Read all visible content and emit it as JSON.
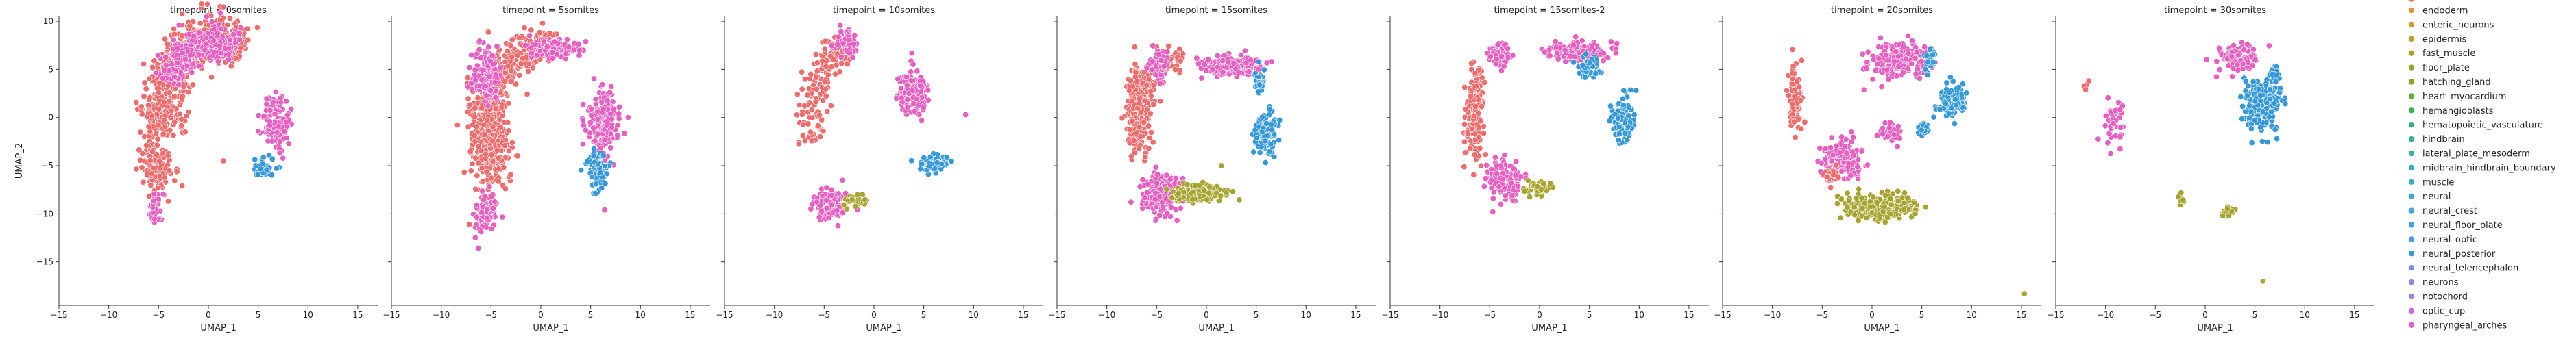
{
  "chart_data": {
    "type": "scatter",
    "xlabel": "UMAP_1",
    "ylabel": "UMAP_2",
    "xlim": [
      -15,
      17
    ],
    "ylim": [
      -19.5,
      10.5
    ],
    "xticks": [
      -15,
      -10,
      -5,
      0,
      5,
      10,
      15
    ],
    "yticks": [
      -15,
      -10,
      -5,
      0,
      5,
      10
    ],
    "grid": false,
    "shared_y": true,
    "legend_position": "right",
    "legend_entries": [
      {
        "label": "endoderm",
        "color": "#e8913a"
      },
      {
        "label": "enteric_neurons",
        "color": "#d59a2a"
      },
      {
        "label": "epidermis",
        "color": "#bf9f2a"
      },
      {
        "label": "fast_muscle",
        "color": "#aaa42a"
      },
      {
        "label": "floor_plate",
        "color": "#96a82a"
      },
      {
        "label": "hatching_gland",
        "color": "#7fac2f"
      },
      {
        "label": "heart_myocardium",
        "color": "#5bb03a"
      },
      {
        "label": "hemangioblasts",
        "color": "#3ab44d"
      },
      {
        "label": "hematopoietic_vasculature",
        "color": "#35b57a"
      },
      {
        "label": "hindbrain",
        "color": "#36b492"
      },
      {
        "label": "lateral_plate_mesoderm",
        "color": "#37b2a4"
      },
      {
        "label": "midbrain_hindbrain_boundary",
        "color": "#38b1b4"
      },
      {
        "label": "muscle",
        "color": "#39afc3"
      },
      {
        "label": "neural",
        "color": "#3aadd2"
      },
      {
        "label": "neural_crest",
        "color": "#3ba9dd"
      },
      {
        "label": "neural_floor_plate",
        "color": "#3ea3e3"
      },
      {
        "label": "neural_optic",
        "color": "#469ce8"
      },
      {
        "label": "neural_posterior",
        "color": "#3498db"
      },
      {
        "label": "neural_telencephalon",
        "color": "#6f8fea"
      },
      {
        "label": "neurons",
        "color": "#8b86ea"
      },
      {
        "label": "notochord",
        "color": "#a57ee8"
      },
      {
        "label": "optic_cup",
        "color": "#c66ee0"
      },
      {
        "label": "pharyngeal_arches",
        "color": "#e75fce"
      }
    ],
    "panels": [
      {
        "title": "timepoint = 0somites",
        "clusters": [
          {
            "type": "arc",
            "color": "#f06b6b",
            "cx": 0.5,
            "cy": -0.5,
            "rx": 5.3,
            "ry": 9.0,
            "a0": 190,
            "a1": 55,
            "thick": 2.2,
            "n": 650
          },
          {
            "type": "blob",
            "color": "#f06b6b",
            "cx": -5.2,
            "cy": -5.0,
            "rx": 1.6,
            "ry": 2.5,
            "n": 130
          },
          {
            "type": "arc",
            "color": "#e85fc2",
            "cx": 0.5,
            "cy": -0.5,
            "rx": 5.3,
            "ry": 8.5,
            "a0": 150,
            "a1": 65,
            "thick": 1.8,
            "n": 320
          },
          {
            "type": "blob",
            "color": "#e85fc2",
            "cx": 6.8,
            "cy": -0.8,
            "rx": 1.3,
            "ry": 2.5,
            "n": 130
          },
          {
            "type": "blob",
            "color": "#e85fc2",
            "cx": -5.4,
            "cy": -9.5,
            "rx": 0.6,
            "ry": 1.6,
            "n": 35
          },
          {
            "type": "blob",
            "color": "#3498db",
            "cx": 5.5,
            "cy": -5.2,
            "rx": 0.9,
            "ry": 0.9,
            "n": 45
          },
          {
            "type": "blob",
            "color": "#f06b6b",
            "cx": 1.5,
            "cy": -4.5,
            "rx": 0.1,
            "ry": 0.1,
            "n": 1
          }
        ]
      },
      {
        "title": "timepoint = 5somites",
        "clusters": [
          {
            "type": "blob",
            "color": "#f06b6b",
            "cx": -5.2,
            "cy": -1.5,
            "rx": 1.7,
            "ry": 5.0,
            "n": 450
          },
          {
            "type": "arc",
            "color": "#f06b6b",
            "cx": 0.2,
            "cy": 0.0,
            "rx": 5.5,
            "ry": 7.5,
            "a0": 160,
            "a1": 75,
            "thick": 1.8,
            "n": 280
          },
          {
            "type": "blob",
            "color": "#e85fc2",
            "cx": -5.5,
            "cy": 4.5,
            "rx": 1.2,
            "ry": 2.5,
            "n": 140
          },
          {
            "type": "blob",
            "color": "#e85fc2",
            "cx": 1.5,
            "cy": 7.2,
            "rx": 2.4,
            "ry": 0.9,
            "n": 120
          },
          {
            "type": "blob",
            "color": "#e85fc2",
            "cx": 6.2,
            "cy": -0.5,
            "rx": 1.4,
            "ry": 3.2,
            "n": 180
          },
          {
            "type": "blob",
            "color": "#e85fc2",
            "cx": -5.5,
            "cy": -10.0,
            "rx": 0.9,
            "ry": 2.0,
            "n": 90
          },
          {
            "type": "blob",
            "color": "#3498db",
            "cx": 5.6,
            "cy": -5.3,
            "rx": 0.9,
            "ry": 1.7,
            "n": 90
          },
          {
            "type": "blob",
            "color": "#e85fc2",
            "cx": 6.4,
            "cy": -9.6,
            "rx": 0.1,
            "ry": 0.1,
            "n": 1
          }
        ]
      },
      {
        "title": "timepoint = 10somites",
        "clusters": [
          {
            "type": "arc",
            "color": "#f06b6b",
            "cx": -3.0,
            "cy": -2.0,
            "rx": 3.5,
            "ry": 9.0,
            "a0": 185,
            "a1": 75,
            "thick": 1.5,
            "n": 160
          },
          {
            "type": "blob",
            "color": "#e85fc2",
            "cx": -2.7,
            "cy": 7.8,
            "rx": 1.0,
            "ry": 1.2,
            "n": 60
          },
          {
            "type": "blob",
            "color": "#e85fc2",
            "cx": -4.3,
            "cy": -9.0,
            "rx": 1.6,
            "ry": 1.4,
            "n": 120
          },
          {
            "type": "blob",
            "color": "#e85fc2",
            "cx": 4.0,
            "cy": 2.6,
            "rx": 1.4,
            "ry": 2.0,
            "n": 150
          },
          {
            "type": "blob",
            "color": "#a6a42e",
            "cx": -1.8,
            "cy": -8.7,
            "rx": 1.0,
            "ry": 0.6,
            "n": 30
          },
          {
            "type": "blob",
            "color": "#3498db",
            "cx": 6.0,
            "cy": -4.8,
            "rx": 1.3,
            "ry": 0.8,
            "n": 70
          },
          {
            "type": "blob",
            "color": "#e85fc2",
            "cx": 9.2,
            "cy": 0.3,
            "rx": 0.1,
            "ry": 0.1,
            "n": 1
          }
        ]
      },
      {
        "title": "timepoint = 15somites",
        "clusters": [
          {
            "type": "blob",
            "color": "#f06b6b",
            "cx": -6.8,
            "cy": 0.8,
            "rx": 1.0,
            "ry": 4.0,
            "n": 280
          },
          {
            "type": "arc",
            "color": "#f06b6b",
            "cx": -3.0,
            "cy": 0.5,
            "rx": 3.5,
            "ry": 5.8,
            "a0": 170,
            "a1": 80,
            "thick": 1.3,
            "n": 100
          },
          {
            "type": "blob",
            "color": "#e85fc2",
            "cx": -4.8,
            "cy": 5.5,
            "rx": 0.8,
            "ry": 1.6,
            "n": 70
          },
          {
            "type": "blob",
            "color": "#e85fc2",
            "cx": -4.5,
            "cy": -8.0,
            "rx": 1.8,
            "ry": 2.0,
            "n": 170
          },
          {
            "type": "blob",
            "color": "#a6a42e",
            "cx": -1.0,
            "cy": -7.8,
            "rx": 2.4,
            "ry": 0.9,
            "n": 160
          },
          {
            "type": "blob",
            "color": "#e85fc2",
            "cx": 2.5,
            "cy": 5.3,
            "rx": 2.5,
            "ry": 0.9,
            "n": 160
          },
          {
            "type": "blob",
            "color": "#3498db",
            "cx": 5.3,
            "cy": 4.0,
            "rx": 0.6,
            "ry": 1.2,
            "n": 30
          },
          {
            "type": "blob",
            "color": "#3498db",
            "cx": 6.0,
            "cy": -1.6,
            "rx": 1.2,
            "ry": 1.8,
            "n": 120
          },
          {
            "type": "blob",
            "color": "#a6a42e",
            "cx": 1.5,
            "cy": -5.0,
            "rx": 0.1,
            "ry": 0.1,
            "n": 1
          }
        ]
      },
      {
        "title": "timepoint = 15somites-2",
        "clusters": [
          {
            "type": "blob",
            "color": "#f06b6b",
            "cx": -6.5,
            "cy": 0.5,
            "rx": 0.9,
            "ry": 4.0,
            "n": 170
          },
          {
            "type": "blob",
            "color": "#e85fc2",
            "cx": -4.0,
            "cy": 6.5,
            "rx": 0.9,
            "ry": 1.3,
            "n": 60
          },
          {
            "type": "blob",
            "color": "#e85fc2",
            "cx": -3.5,
            "cy": -6.5,
            "rx": 1.6,
            "ry": 2.0,
            "n": 120
          },
          {
            "type": "blob",
            "color": "#a6a42e",
            "cx": -0.3,
            "cy": -7.3,
            "rx": 1.4,
            "ry": 0.7,
            "n": 50
          },
          {
            "type": "blob",
            "color": "#e85fc2",
            "cx": 4.0,
            "cy": 6.8,
            "rx": 2.8,
            "ry": 0.9,
            "n": 150
          },
          {
            "type": "blob",
            "color": "#3498db",
            "cx": 5.0,
            "cy": 5.2,
            "rx": 1.0,
            "ry": 0.9,
            "n": 50
          },
          {
            "type": "blob",
            "color": "#3498db",
            "cx": 8.3,
            "cy": 0.0,
            "rx": 0.9,
            "ry": 2.0,
            "n": 110
          }
        ]
      },
      {
        "title": "timepoint = 20somites",
        "clusters": [
          {
            "type": "blob",
            "color": "#f06b6b",
            "cx": -7.7,
            "cy": 2.0,
            "rx": 0.6,
            "ry": 3.0,
            "n": 100
          },
          {
            "type": "blob",
            "color": "#e85fc2",
            "cx": -3.0,
            "cy": -4.5,
            "rx": 1.9,
            "ry": 2.0,
            "n": 160
          },
          {
            "type": "blob",
            "color": "#f06b6b",
            "cx": -4.0,
            "cy": -6.0,
            "rx": 0.8,
            "ry": 0.8,
            "n": 30
          },
          {
            "type": "blob",
            "color": "#a6a42e",
            "cx": 0.8,
            "cy": -9.3,
            "rx": 3.2,
            "ry": 1.1,
            "n": 240
          },
          {
            "type": "blob",
            "color": "#e85fc2",
            "cx": 2.5,
            "cy": 5.8,
            "rx": 2.8,
            "ry": 1.8,
            "n": 180
          },
          {
            "type": "blob",
            "color": "#e85fc2",
            "cx": 2.0,
            "cy": -1.5,
            "rx": 0.9,
            "ry": 1.0,
            "n": 40
          },
          {
            "type": "blob",
            "color": "#3498db",
            "cx": 5.2,
            "cy": -1.2,
            "rx": 0.5,
            "ry": 0.6,
            "n": 25
          },
          {
            "type": "blob",
            "color": "#3498db",
            "cx": 8.2,
            "cy": 1.8,
            "rx": 1.2,
            "ry": 1.4,
            "n": 130
          },
          {
            "type": "blob",
            "color": "#3498db",
            "cx": 5.8,
            "cy": 6.0,
            "rx": 0.4,
            "ry": 1.2,
            "n": 25
          },
          {
            "type": "blob",
            "color": "#a6a42e",
            "cx": 15.3,
            "cy": -18.3,
            "rx": 0.1,
            "ry": 0.1,
            "n": 1
          }
        ]
      },
      {
        "title": "timepoint = 30somites",
        "clusters": [
          {
            "type": "blob",
            "color": "#f06b6b",
            "cx": -12.0,
            "cy": 3.2,
            "rx": 0.3,
            "ry": 0.4,
            "n": 6
          },
          {
            "type": "blob",
            "color": "#e85fc2",
            "cx": -9.0,
            "cy": -0.5,
            "rx": 1.0,
            "ry": 2.3,
            "n": 40
          },
          {
            "type": "blob",
            "color": "#e85fc2",
            "cx": 3.5,
            "cy": 6.2,
            "rx": 2.0,
            "ry": 1.3,
            "n": 90
          },
          {
            "type": "blob",
            "color": "#3498db",
            "cx": 5.8,
            "cy": 1.5,
            "rx": 1.5,
            "ry": 2.5,
            "n": 200
          },
          {
            "type": "blob",
            "color": "#3498db",
            "cx": 7.0,
            "cy": 4.5,
            "rx": 0.4,
            "ry": 0.7,
            "n": 20
          },
          {
            "type": "blob",
            "color": "#a6a42e",
            "cx": -2.5,
            "cy": -8.5,
            "rx": 0.6,
            "ry": 0.6,
            "n": 12
          },
          {
            "type": "blob",
            "color": "#a6a42e",
            "cx": 2.2,
            "cy": -9.8,
            "rx": 0.6,
            "ry": 0.5,
            "n": 25
          },
          {
            "type": "blob",
            "color": "#a6a42e",
            "cx": 5.8,
            "cy": -17.0,
            "rx": 0.1,
            "ry": 0.1,
            "n": 1
          }
        ]
      }
    ]
  }
}
